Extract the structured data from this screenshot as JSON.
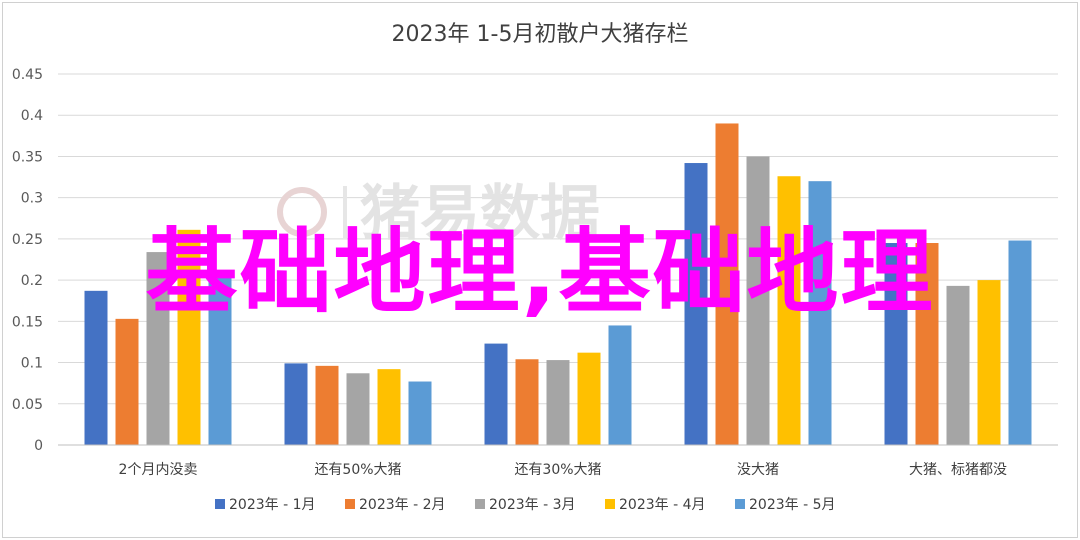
{
  "chart_data": {
    "type": "bar",
    "title": "2023年 1-5月初散户大猪存栏",
    "categories": [
      "2个月内没卖",
      "还有50%大猪",
      "还有30%大猪",
      "没大猪",
      "大猪、标猪都没"
    ],
    "series": [
      {
        "name": "2023年 - 1月",
        "color": "#4472C4",
        "values": [
          0.187,
          0.099,
          0.123,
          0.342,
          0.245
        ]
      },
      {
        "name": "2023年 - 2月",
        "color": "#ED7D31",
        "values": [
          0.153,
          0.096,
          0.104,
          0.39,
          0.245
        ]
      },
      {
        "name": "2023年 - 3月",
        "color": "#A5A5A5",
        "values": [
          0.234,
          0.087,
          0.103,
          0.35,
          0.193
        ]
      },
      {
        "name": "2023年 - 4月",
        "color": "#FFC000",
        "values": [
          0.261,
          0.092,
          0.112,
          0.326,
          0.2
        ]
      },
      {
        "name": "2023年 - 5月",
        "color": "#5B9BD5",
        "values": [
          0.21,
          0.077,
          0.145,
          0.32,
          0.248
        ]
      }
    ],
    "ylim": [
      0,
      0.45
    ],
    "yticks": [
      "0",
      "0.05",
      "0.1",
      "0.15",
      "0.2",
      "0.25",
      "0.3",
      "0.35",
      "0.4",
      "0.45"
    ],
    "grid": true,
    "legend": "bottom"
  },
  "watermark": "猪易数据",
  "overlay_text": "基础地理,基础地理"
}
